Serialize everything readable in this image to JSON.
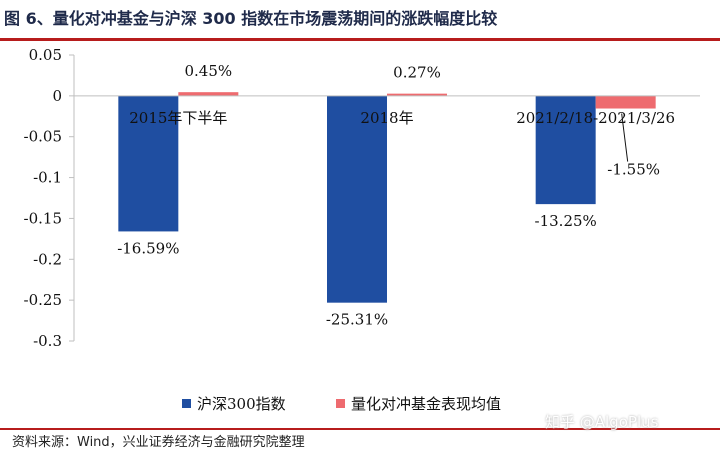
{
  "header": {
    "title": "图 6、量化对冲基金与沪深 300 指数在市场震荡期间的涨跌幅度比较"
  },
  "footer": {
    "source": "资料来源：Wind，兴业证券经济与金融研究院整理"
  },
  "watermark": "知乎 @AlgoPlus",
  "colors": {
    "series_1": "#1f4ea1",
    "series_2": "#ee6b6f",
    "title_rule": "#b71c1c"
  },
  "chart_data": {
    "type": "bar",
    "categories": [
      "2015年下半年",
      "2018年",
      "2021/2/18-2021/3/26"
    ],
    "series": [
      {
        "name": "沪深300指数",
        "values": [
          -0.1659,
          -0.2531,
          -0.1325
        ],
        "labels": [
          "-16.59%",
          "-25.31%",
          "-13.25%"
        ]
      },
      {
        "name": "量化对冲基金表现均值",
        "values": [
          0.0045,
          0.0027,
          -0.0155
        ],
        "labels": [
          "0.45%",
          "0.27%",
          "-1.55%"
        ]
      }
    ],
    "ylim": [
      -0.3,
      0.05
    ],
    "yticks": [
      "0.05",
      "0",
      "-0.05",
      "-0.1",
      "-0.15",
      "-0.2",
      "-0.25",
      "-0.3"
    ],
    "title": "",
    "xlabel": "",
    "ylabel": "",
    "grid": false,
    "legend_position": "bottom"
  }
}
